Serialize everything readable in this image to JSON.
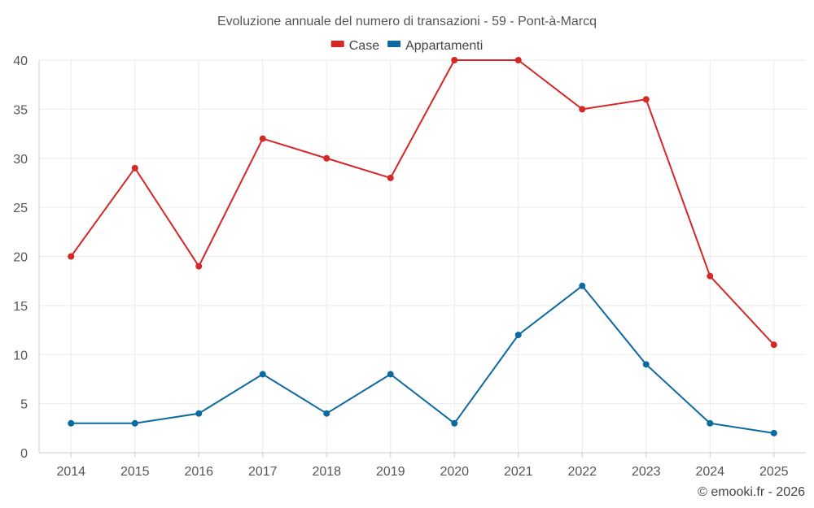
{
  "chart_data": {
    "type": "line",
    "title": "Evoluzione annuale del numero di transazioni - 59 - Pont-à-Marcq",
    "xlabel": "",
    "ylabel": "",
    "categories": [
      "2014",
      "2015",
      "2016",
      "2017",
      "2018",
      "2019",
      "2020",
      "2021",
      "2022",
      "2023",
      "2024",
      "2025"
    ],
    "ylim": [
      0,
      40
    ],
    "yticks": [
      0,
      5,
      10,
      15,
      20,
      25,
      30,
      35,
      40
    ],
    "grid": true,
    "legend_position": "top-center",
    "series": [
      {
        "name": "Case",
        "color": "#d62728",
        "values": [
          20,
          29,
          19,
          32,
          30,
          28,
          40,
          40,
          35,
          36,
          18,
          11
        ]
      },
      {
        "name": "Appartamenti",
        "color": "#0d6aa0",
        "values": [
          3,
          3,
          4,
          8,
          4,
          8,
          3,
          12,
          17,
          9,
          3,
          2
        ]
      }
    ]
  },
  "credit": "© emooki.fr - 2026"
}
